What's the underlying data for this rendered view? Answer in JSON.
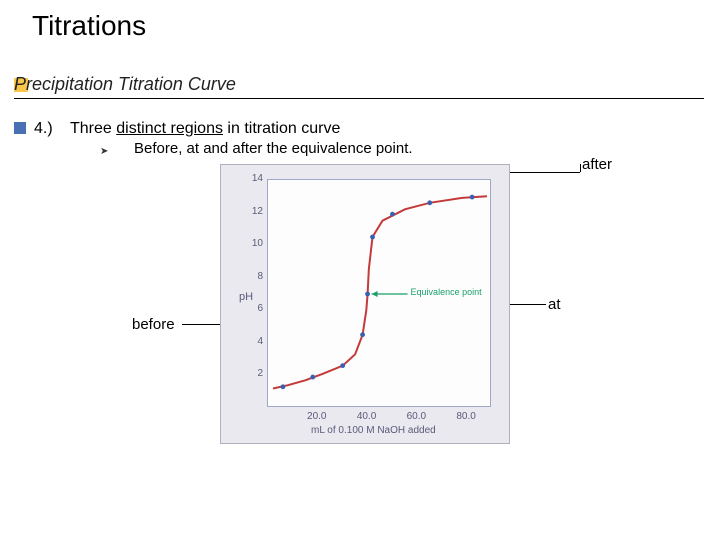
{
  "title": "Titrations",
  "subtitle": "Precipitation Titration Curve",
  "item_number": "4.)",
  "item_text_prefix": "Three ",
  "item_text_underline": "distinct regions",
  "item_text_suffix": " in titration curve",
  "bullet_glyph": "➤",
  "bullet_text": "Before, at and after the equivalence point.",
  "labels": {
    "after": "after",
    "at": "at",
    "before": "before"
  },
  "chart": {
    "type": "line",
    "background_color": "#e9e9ef",
    "plot_background": "#fdfdfd",
    "border_color": "#9fa8c7",
    "xlim": [
      0,
      90
    ],
    "ylim": [
      0,
      14
    ],
    "yticks": [
      2,
      4,
      6,
      8,
      10,
      12,
      14
    ],
    "xticks": [
      20,
      40,
      60,
      80
    ],
    "xtick_labels": [
      "20.0",
      "40.0",
      "60.0",
      "80.0"
    ],
    "ylabel": "pH",
    "xlabel": "mL of 0.100 M NaOH added",
    "curve_color": "#c43a3a",
    "curve_width": 2,
    "marker_color": "#3b5fb0",
    "marker_radius": 2.4,
    "curve_points_ml_pH": [
      [
        2,
        1.2
      ],
      [
        8,
        1.4
      ],
      [
        15,
        1.7
      ],
      [
        22,
        2.1
      ],
      [
        30,
        2.6
      ],
      [
        35,
        3.3
      ],
      [
        38,
        4.5
      ],
      [
        39.5,
        6.0
      ],
      [
        40,
        7.0
      ],
      [
        40.5,
        8.5
      ],
      [
        42,
        10.5
      ],
      [
        46,
        11.5
      ],
      [
        55,
        12.2
      ],
      [
        65,
        12.6
      ],
      [
        78,
        12.9
      ],
      [
        88,
        13.0
      ]
    ],
    "markers_ml_pH": [
      [
        6,
        1.3
      ],
      [
        18,
        1.9
      ],
      [
        30,
        2.6
      ],
      [
        38,
        4.5
      ],
      [
        40,
        7.0
      ],
      [
        42,
        10.5
      ],
      [
        50,
        11.9
      ],
      [
        65,
        12.6
      ],
      [
        82,
        12.95
      ]
    ],
    "eq_label": "Equivalence point",
    "eq_arrow_color": "#1aa06a",
    "eq_point_ml_pH": [
      40,
      7.0
    ],
    "label_fontsize": 10,
    "tick_color": "#5a5a7a"
  }
}
